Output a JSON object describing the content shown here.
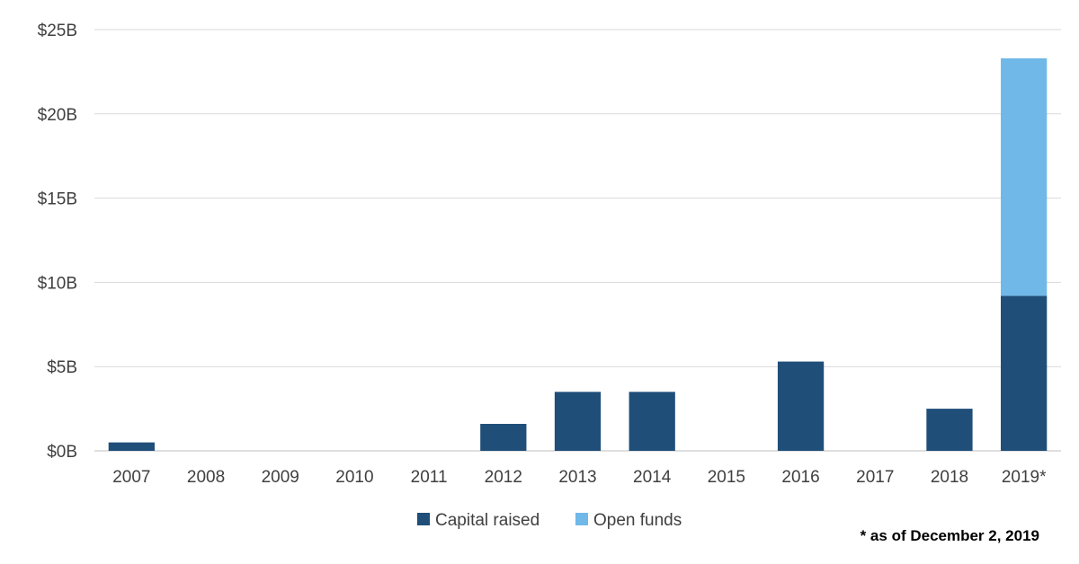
{
  "chart_data": {
    "type": "bar",
    "stacked": true,
    "categories": [
      "2007",
      "2008",
      "2009",
      "2010",
      "2011",
      "2012",
      "2013",
      "2014",
      "2015",
      "2016",
      "2017",
      "2018",
      "2019*"
    ],
    "series": [
      {
        "name": "Capital raised",
        "color": "#1f4e79",
        "values": [
          0.5,
          0,
          0,
          0,
          0,
          1.6,
          3.5,
          3.5,
          0,
          5.3,
          0,
          2.5,
          9.2
        ]
      },
      {
        "name": "Open funds",
        "color": "#70b8e8",
        "values": [
          0,
          0,
          0,
          0,
          0,
          0,
          0,
          0,
          0,
          0,
          0,
          0,
          14.1
        ]
      }
    ],
    "y_ticks": [
      "$0B",
      "$5B",
      "$10B",
      "$15B",
      "$20B",
      "$25B"
    ],
    "ylim": [
      0,
      25
    ],
    "grid": true,
    "legend_position": "bottom",
    "footnote": "* as of December 2, 2019"
  }
}
